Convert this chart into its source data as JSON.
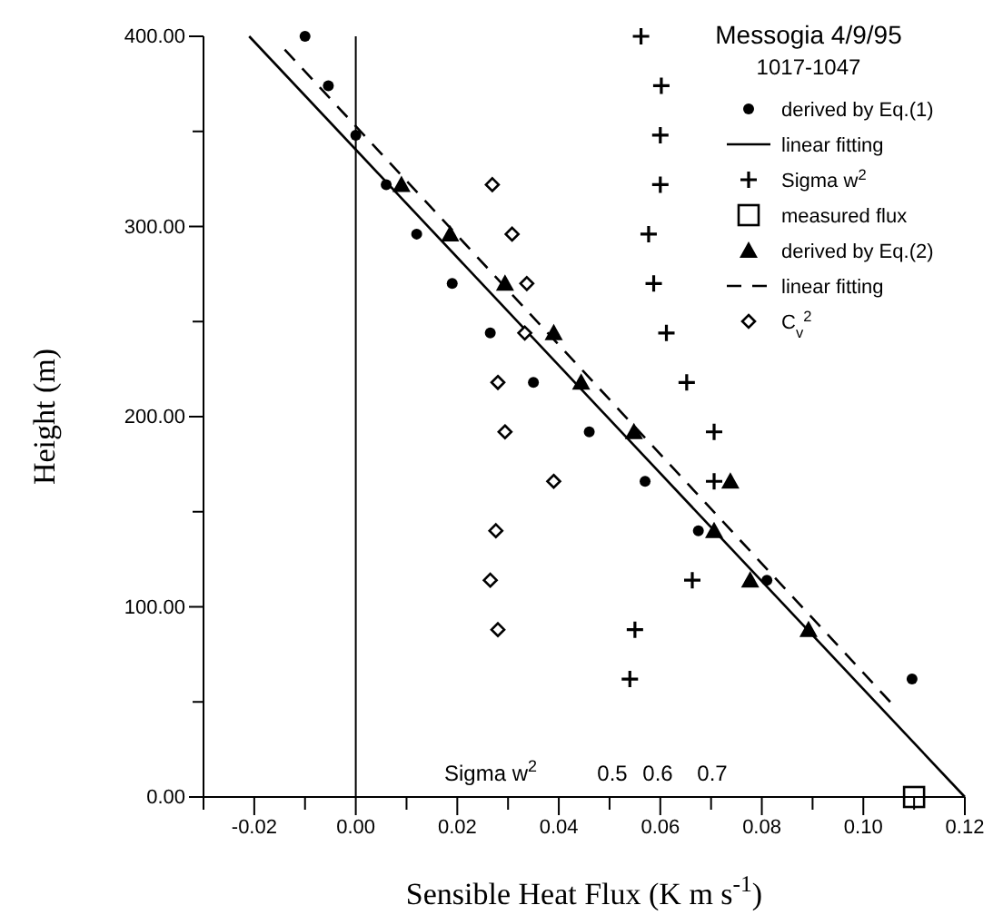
{
  "chart_data": {
    "type": "scatter",
    "title": "Messogia 4/9/95",
    "subtitle": "1017-1047",
    "xlabel": "Sensible Heat Flux (K m s$^{-1}$)",
    "ylabel": "Height (m)",
    "xlim": [
      -0.03,
      0.12
    ],
    "ylim": [
      0,
      400
    ],
    "xticks": [
      {
        "value": -0.03,
        "label": null
      },
      {
        "value": -0.02,
        "label": "-0.02"
      },
      {
        "value": -0.01,
        "label": null
      },
      {
        "value": 0,
        "label": "0.00"
      },
      {
        "value": 0.01,
        "label": null
      },
      {
        "value": 0.02,
        "label": "0.02"
      },
      {
        "value": 0.03,
        "label": null
      },
      {
        "value": 0.04,
        "label": "0.04"
      },
      {
        "value": 0.05,
        "label": null
      },
      {
        "value": 0.06,
        "label": "0.06"
      },
      {
        "value": 0.07,
        "label": null
      },
      {
        "value": 0.08,
        "label": "0.08"
      },
      {
        "value": 0.09,
        "label": null
      },
      {
        "value": 0.1,
        "label": "0.10"
      },
      {
        "value": 0.11,
        "label": null
      },
      {
        "value": 0.12,
        "label": "0.12"
      }
    ],
    "yticks": [
      {
        "value": 0,
        "label": "0.00"
      },
      {
        "value": 50,
        "label": null
      },
      {
        "value": 100,
        "label": "100.00"
      },
      {
        "value": 150,
        "label": null
      },
      {
        "value": 200,
        "label": "200.00"
      },
      {
        "value": 250,
        "label": null
      },
      {
        "value": 300,
        "label": "300.00"
      },
      {
        "value": 350,
        "label": null
      },
      {
        "value": 400,
        "label": "400.00"
      }
    ],
    "grid": false,
    "legend": "top right",
    "ref_lines": [
      {
        "axis": "x",
        "value": 0,
        "label": null,
        "color": "#000000"
      }
    ],
    "annotations": [
      "Sigma w$^{2}$",
      "0.5",
      "0.6",
      "0.7"
    ],
    "series": [
      {
        "name": "derived by Eq.(1)",
        "marker": "circle",
        "color": "#000000",
        "x": [
          -0.01,
          -0.0054,
          0,
          0.006,
          0.012,
          0.019,
          0.0265,
          0.035,
          0.046,
          0.057,
          0.0675,
          0.081,
          null,
          0.1096
        ],
        "values": [
          400,
          374,
          348,
          322,
          296,
          270,
          244,
          218,
          192,
          166,
          140,
          114,
          null,
          62
        ]
      },
      {
        "name": "linear fitting",
        "type": "line",
        "line_style": "solid",
        "color": "#000000",
        "x": [
          -0.021,
          0.12
        ],
        "values": [
          400,
          0
        ]
      },
      {
        "name": "Sigma w$^{2}$",
        "marker": "cross",
        "color": "#000000",
        "x": [
          0.0562,
          0.0602,
          0.06,
          0.06,
          0.0577,
          0.0587,
          0.0612,
          0.0652,
          0.0706,
          0.0706,
          0.0663,
          0.055,
          0.054
        ],
        "values": [
          400,
          374,
          348,
          322,
          296,
          270,
          244,
          218,
          192,
          166,
          114,
          88,
          62
        ]
      },
      {
        "name": "measured flux",
        "marker": "square",
        "color": "#000000",
        "x": [
          0.11
        ],
        "values": [
          0
        ]
      },
      {
        "name": "derived by Eq.(2)",
        "marker": "triangle",
        "color": "#000000",
        "x": [
          0.009,
          0.0186,
          0.0294,
          0.039,
          0.0444,
          0.0548,
          0.0738,
          0.0706,
          0.0777,
          0.0892
        ],
        "values": [
          322,
          296,
          270,
          244,
          218,
          192,
          166,
          140,
          114,
          88
        ]
      },
      {
        "name": "linear fitting",
        "type": "line",
        "line_style": "dashed",
        "color": "#000000",
        "x": [
          -0.014,
          0.1053
        ],
        "values": [
          393,
          50
        ]
      },
      {
        "name": "C$_{v}$$^{2}$",
        "marker": "diamond",
        "color": "#000000",
        "x": [
          0.0269,
          0.0308,
          0.0337,
          0.0333,
          0.028,
          0.0294,
          0.039,
          0.0276,
          0.0265,
          0.028
        ],
        "values": [
          322,
          296,
          270,
          244,
          218,
          192,
          166,
          140,
          114,
          88
        ]
      }
    ]
  }
}
